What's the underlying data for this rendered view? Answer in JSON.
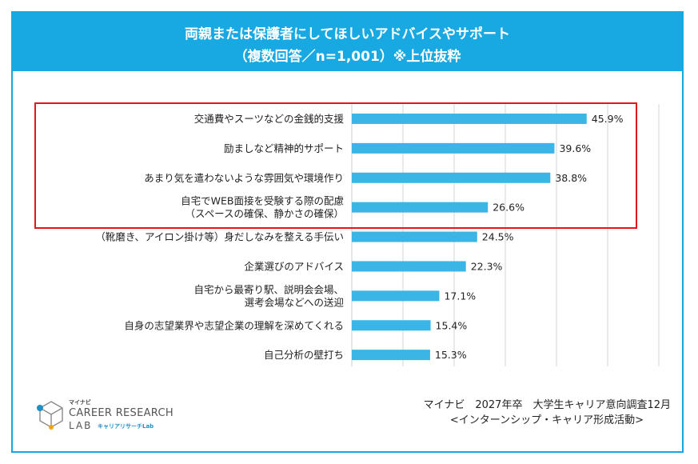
{
  "header": {
    "title_line1": "両親または保護者にしてほしいアドバイスやサポート",
    "title_line2": "（複数回答／n=1,001）※上位抜粋"
  },
  "chart_data": {
    "type": "bar",
    "orientation": "horizontal",
    "title": "両親または保護者にしてほしいアドバイスやサポート（複数回答／n=1,001）※上位抜粋",
    "categories": [
      [
        "交通費やスーツなどの金銭的支援"
      ],
      [
        "励ましなど精神的サポート"
      ],
      [
        "あまり気を遣わないような雰囲気や環境作り"
      ],
      [
        "自宅でWEB面接を受験する際の配慮",
        "（スペースの確保、静かさの確保）"
      ],
      [
        "（靴磨き、アイロン掛け等）身だしなみを整える手伝い"
      ],
      [
        "企業選びのアドバイス"
      ],
      [
        "自宅から最寄り駅、説明会会場、",
        "選考会場などへの送迎"
      ],
      [
        "自身の志望業界や志望企業の理解を深めてくれる"
      ],
      [
        "自己分析の壁打ち"
      ]
    ],
    "values": [
      45.9,
      39.6,
      38.8,
      26.6,
      24.5,
      22.3,
      17.1,
      15.4,
      15.3
    ],
    "value_labels": [
      "45.9%",
      "39.6%",
      "38.8%",
      "26.6%",
      "24.5%",
      "22.3%",
      "17.1%",
      "15.4%",
      "15.3%"
    ],
    "xlim": [
      0,
      60
    ],
    "grid": true,
    "highlighted_top_n": 4,
    "colors": {
      "bar": "#3bb4e6",
      "highlight_box": "#e5161b",
      "grid": "#d6d6d6"
    }
  },
  "source": {
    "line1": "マイナビ　2027年卒　大学生キャリア意向調査12月",
    "line2": "<インターンシップ・キャリア形成活動>"
  },
  "logo": {
    "small": "マイナビ",
    "main": "CAREER RESEARCH",
    "lab": "LAB",
    "sub": "キャリアリサーチLab"
  }
}
